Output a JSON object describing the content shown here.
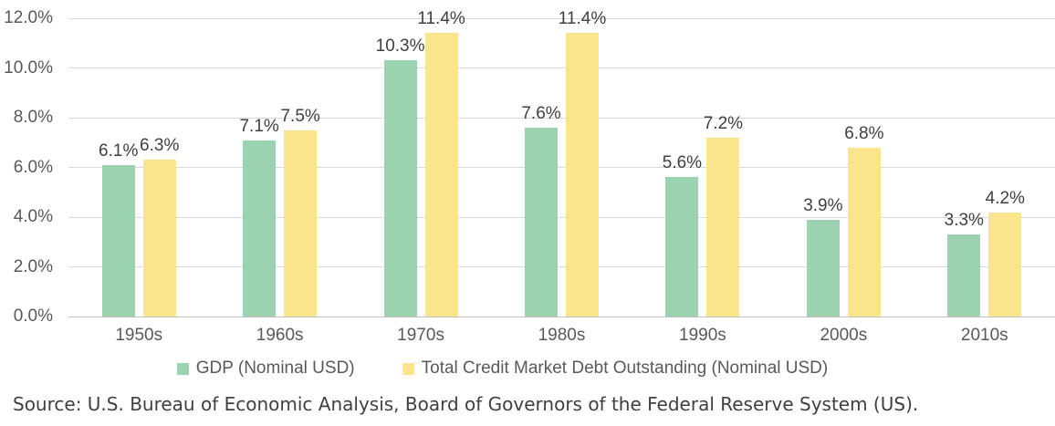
{
  "chart_data": {
    "type": "bar",
    "title": "",
    "categories": [
      "1950s",
      "1960s",
      "1970s",
      "1980s",
      "1990s",
      "2000s",
      "2010s"
    ],
    "series": [
      {
        "name": "GDP (Nominal USD)",
        "color": "#9BD2B0",
        "values": [
          6.1,
          7.1,
          10.3,
          7.6,
          5.6,
          3.9,
          3.3
        ],
        "labels": [
          "6.1%",
          "7.1%",
          "10.3%",
          "7.6%",
          "5.6%",
          "3.9%",
          "3.3%"
        ]
      },
      {
        "name": "Total Credit Market Debt Outstanding (Nominal USD)",
        "color": "#FAE58C",
        "values": [
          6.3,
          7.5,
          11.4,
          11.4,
          7.2,
          6.8,
          4.2
        ],
        "labels": [
          "6.3%",
          "7.5%",
          "11.4%",
          "11.4%",
          "7.2%",
          "6.8%",
          "4.2%"
        ]
      }
    ],
    "y_ticks": [
      "0.0%",
      "2.0%",
      "4.0%",
      "6.0%",
      "8.0%",
      "10.0%",
      "12.0%"
    ],
    "ylim": [
      0,
      12
    ],
    "grid": true,
    "legend_position": "bottom"
  },
  "source_note": "Source: U.S. Bureau of Economic Analysis, Board of Governors of the Federal Reserve System (US).",
  "colors": {
    "gridline": "#D9D9D9",
    "baseline": "#BFBFBF",
    "tick_text": "#595959",
    "data_label_text": "#404040",
    "source_text": "#3F3F3F"
  }
}
